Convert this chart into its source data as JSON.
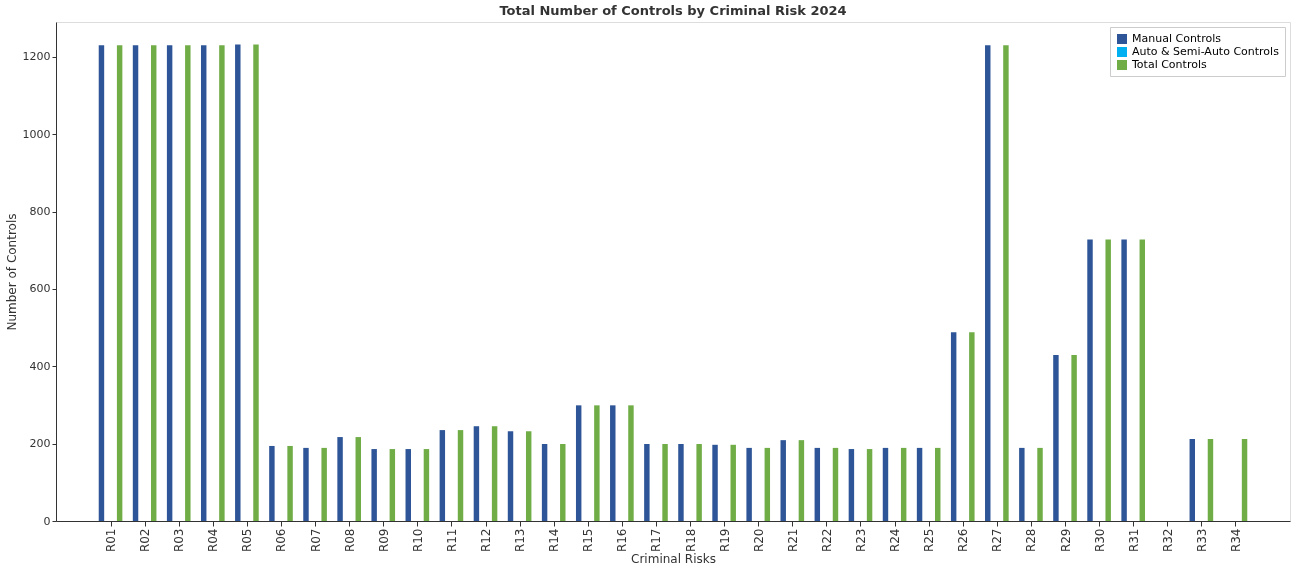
{
  "chart_data": {
    "type": "bar",
    "title": "Total Number of Controls by Criminal Risk 2024",
    "xlabel": "Criminal Risks",
    "ylabel": "Number of Controls",
    "categories": [
      "R01",
      "R02",
      "R03",
      "R04",
      "R05",
      "R06",
      "R07",
      "R08",
      "R09",
      "R10",
      "R11",
      "R12",
      "R13",
      "R14",
      "R15",
      "R16",
      "R17",
      "R18",
      "R19",
      "R20",
      "R21",
      "R22",
      "R23",
      "R24",
      "R25",
      "R26",
      "R27",
      "R28",
      "R29",
      "R30",
      "R31",
      "R32",
      "R33",
      "R34"
    ],
    "series": [
      {
        "name": "Manual Controls",
        "color": "#2e5597",
        "values": [
          1230,
          1230,
          1230,
          1230,
          1232,
          194,
          189,
          217,
          186,
          186,
          235,
          245,
          232,
          199,
          299,
          299,
          199,
          199,
          197,
          189,
          209,
          189,
          186,
          189,
          189,
          488,
          1230,
          189,
          429,
          728,
          728,
          0,
          212,
          0
        ]
      },
      {
        "name": "Auto & Semi-Auto Controls",
        "color": "#00b0f0",
        "values": [
          0,
          0,
          0,
          0,
          0,
          0,
          0,
          0,
          0,
          0,
          0,
          0,
          0,
          0,
          0,
          0,
          0,
          0,
          0,
          0,
          0,
          0,
          0,
          0,
          0,
          0,
          0,
          0,
          0,
          0,
          0,
          0,
          0,
          0
        ]
      },
      {
        "name": "Total Controls",
        "color": "#70ad47",
        "values": [
          1230,
          1230,
          1230,
          1230,
          1232,
          194,
          189,
          217,
          186,
          186,
          235,
          245,
          232,
          199,
          299,
          299,
          199,
          199,
          197,
          189,
          209,
          189,
          186,
          189,
          189,
          488,
          1230,
          189,
          429,
          728,
          728,
          0,
          212,
          212
        ]
      }
    ],
    "ylim": [
      0,
      1290
    ],
    "yticks": [
      0,
      200,
      400,
      600,
      800,
      1000,
      1200
    ],
    "grid": false,
    "legend": "top right"
  }
}
